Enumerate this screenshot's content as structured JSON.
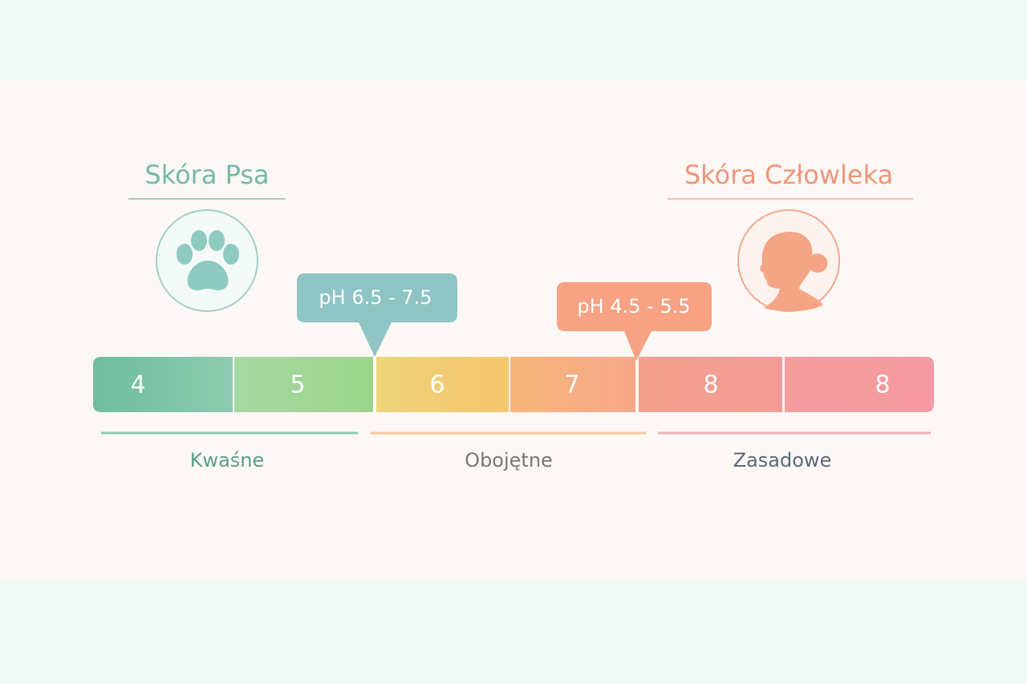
{
  "dog": {
    "title": "Skóra Psa",
    "callout": "pH 6.5 - 7.5"
  },
  "human": {
    "title": "Skóra Człowleka",
    "callout": "pH 4.5 - 5.5"
  },
  "scale": {
    "segments": [
      "4",
      "5",
      "6",
      "7",
      "8",
      "8"
    ]
  },
  "zones": [
    "Kwaśne",
    "Obojętne",
    "Zasadowe"
  ]
}
